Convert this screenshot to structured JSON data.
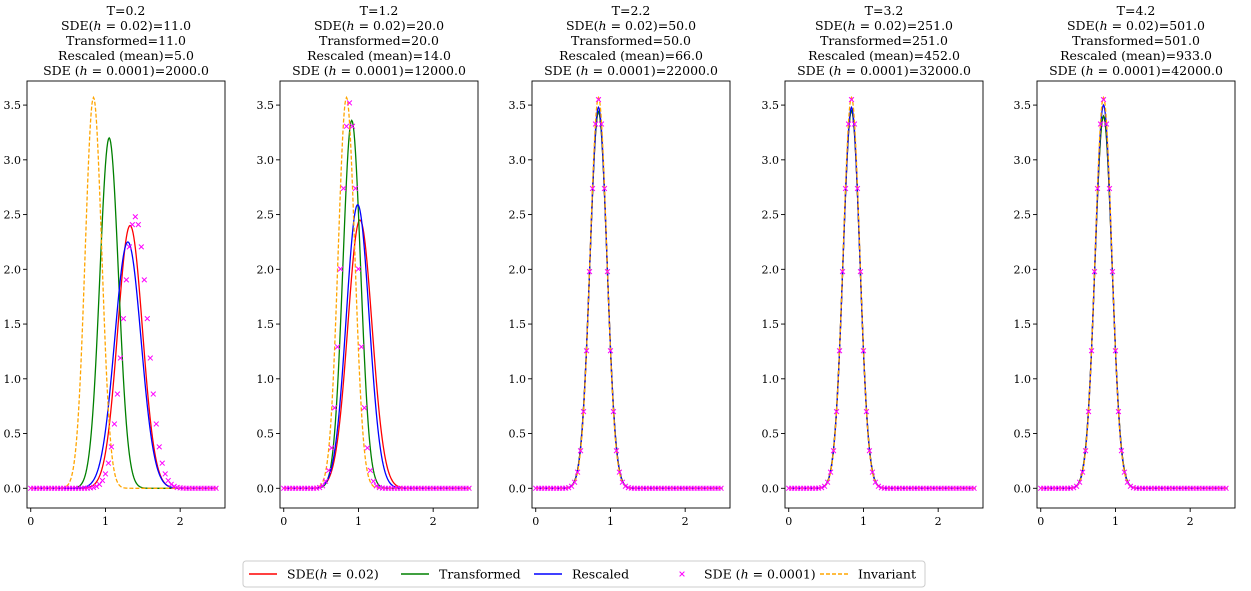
{
  "chart_data": {
    "type": "line",
    "ylim": [
      -0.18,
      3.72
    ],
    "xlim": [
      -0.05,
      2.6
    ],
    "x_ticks": [
      0,
      1,
      2
    ],
    "y_ticks": [
      0.0,
      0.5,
      1.0,
      1.5,
      2.0,
      2.5,
      3.0,
      3.5
    ],
    "x_tick_labels": [
      "0",
      "1",
      "2"
    ],
    "y_tick_labels": [
      "0.0",
      "0.5",
      "1.0",
      "1.5",
      "2.0",
      "2.5",
      "3.0",
      "3.5"
    ],
    "grid": false,
    "legend_position": "bottom-center",
    "legend": [
      {
        "label": "SDE($h$ = 0.02)",
        "color": "#ff0000",
        "style": "solid"
      },
      {
        "label": "Transformed",
        "color": "#008000",
        "style": "solid"
      },
      {
        "label": "Rescaled",
        "color": "#0000ff",
        "style": "solid"
      },
      {
        "label": "SDE ($h$ = 0.0001)",
        "color": "#ff00ff",
        "style": "cross"
      },
      {
        "label": "Invariant",
        "color": "#ffa500",
        "style": "dashed"
      }
    ],
    "panels": [
      {
        "title_lines": [
          "T=0.2",
          "SDE($h$ = 0.02)=11.0",
          "Transformed=11.0",
          "Rescaled (mean)=5.0",
          "SDE ($h$ = 0.0001)=2000.0"
        ],
        "series": [
          {
            "kind": "gauss",
            "mu": 1.33,
            "sigma": 0.165,
            "peak": 2.4
          },
          {
            "kind": "gauss",
            "mu": 1.05,
            "sigma": 0.125,
            "peak": 3.2
          },
          {
            "kind": "gauss",
            "mu": 1.3,
            "sigma": 0.176,
            "peak": 2.25
          },
          {
            "kind": "gauss",
            "mu": 1.4,
            "sigma": 0.165,
            "peak": 2.48
          },
          {
            "kind": "gauss",
            "mu": 0.84,
            "sigma": 0.111,
            "peak": 3.57
          }
        ]
      },
      {
        "title_lines": [
          "T=1.2",
          "SDE($h$ = 0.02)=20.0",
          "Transformed=20.0",
          "Rescaled (mean)=14.0",
          "SDE ($h$ = 0.0001)=12000.0"
        ],
        "series": [
          {
            "kind": "gauss",
            "mu": 1.02,
            "sigma": 0.162,
            "peak": 2.45
          },
          {
            "kind": "gauss",
            "mu": 0.91,
            "sigma": 0.118,
            "peak": 3.36
          },
          {
            "kind": "gauss",
            "mu": 0.99,
            "sigma": 0.153,
            "peak": 2.59
          },
          {
            "kind": "gauss",
            "mu": 0.88,
            "sigma": 0.113,
            "peak": 3.52
          },
          {
            "kind": "gauss",
            "mu": 0.84,
            "sigma": 0.111,
            "peak": 3.57
          }
        ]
      },
      {
        "title_lines": [
          "T=2.2",
          "SDE($h$ = 0.02)=50.0",
          "Transformed=50.0",
          "Rescaled (mean)=66.0",
          "SDE ($h$ = 0.0001)=22000.0"
        ],
        "series": [
          {
            "kind": "gauss",
            "mu": 0.84,
            "sigma": 0.114,
            "peak": 3.44
          },
          {
            "kind": "gauss",
            "mu": 0.84,
            "sigma": 0.114,
            "peak": 3.44
          },
          {
            "kind": "gauss",
            "mu": 0.84,
            "sigma": 0.113,
            "peak": 3.48
          },
          {
            "kind": "gauss",
            "mu": 0.84,
            "sigma": 0.111,
            "peak": 3.55
          },
          {
            "kind": "gauss",
            "mu": 0.84,
            "sigma": 0.111,
            "peak": 3.57
          }
        ]
      },
      {
        "title_lines": [
          "T=3.2",
          "SDE($h$ = 0.02)=251.0",
          "Transformed=251.0",
          "Rescaled (mean)=452.0",
          "SDE ($h$ = 0.0001)=32000.0"
        ],
        "series": [
          {
            "kind": "gauss",
            "mu": 0.84,
            "sigma": 0.113,
            "peak": 3.45
          },
          {
            "kind": "gauss",
            "mu": 0.84,
            "sigma": 0.113,
            "peak": 3.45
          },
          {
            "kind": "gauss",
            "mu": 0.84,
            "sigma": 0.112,
            "peak": 3.48
          },
          {
            "kind": "gauss",
            "mu": 0.84,
            "sigma": 0.111,
            "peak": 3.55
          },
          {
            "kind": "gauss",
            "mu": 0.84,
            "sigma": 0.111,
            "peak": 3.57
          }
        ]
      },
      {
        "title_lines": [
          "T=4.2",
          "SDE($h$ = 0.02)=501.0",
          "Transformed=501.0",
          "Rescaled (mean)=933.0",
          "SDE ($h$ = 0.0001)=42000.0"
        ],
        "series": [
          {
            "kind": "gauss",
            "mu": 0.84,
            "sigma": 0.114,
            "peak": 3.4
          },
          {
            "kind": "gauss",
            "mu": 0.84,
            "sigma": 0.114,
            "peak": 3.4
          },
          {
            "kind": "gauss",
            "mu": 0.84,
            "sigma": 0.112,
            "peak": 3.5
          },
          {
            "kind": "gauss",
            "mu": 0.84,
            "sigma": 0.111,
            "peak": 3.55
          },
          {
            "kind": "gauss",
            "mu": 0.84,
            "sigma": 0.111,
            "peak": 3.57
          }
        ]
      }
    ]
  }
}
